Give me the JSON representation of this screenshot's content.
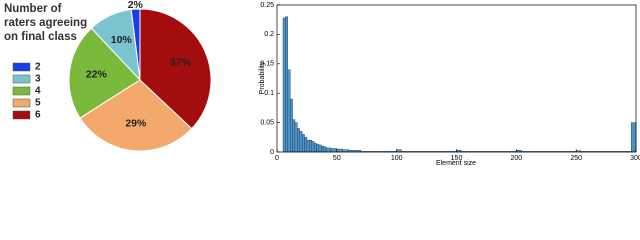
{
  "chart_data": [
    {
      "type": "pie",
      "title": "Number of raters agreeing on final class",
      "categories": [
        "2",
        "3",
        "4",
        "5",
        "6"
      ],
      "values": [
        2,
        10,
        22,
        29,
        37
      ],
      "value_labels": [
        "2%",
        "10%",
        "22%",
        "29%",
        "37%"
      ],
      "colors": [
        "#1d3fe0",
        "#7ac4cf",
        "#79b93c",
        "#f2a96b",
        "#a30d0d"
      ]
    },
    {
      "type": "histogram",
      "x_label": "Element size",
      "y_label": "Probability",
      "bins": [
        5,
        7,
        9,
        11,
        13,
        15,
        17,
        19,
        21,
        23,
        25,
        27,
        29,
        31,
        33,
        35,
        37,
        39,
        41,
        45,
        50,
        55,
        60,
        70,
        100,
        104,
        150,
        154,
        200,
        204,
        250,
        254,
        296,
        300
      ],
      "values": [
        0.228,
        0.23,
        0.14,
        0.09,
        0.055,
        0.05,
        0.04,
        0.035,
        0.03,
        0.025,
        0.02,
        0.02,
        0.018,
        0.015,
        0.013,
        0.012,
        0.01,
        0.009,
        0.007,
        0.006,
        0.005,
        0.004,
        0.003,
        0.001,
        0.004,
        0.001,
        0.003,
        0.001,
        0.003,
        0.001,
        0.002,
        0.001,
        0.05
      ],
      "color": "#4d94c9",
      "xlim": [
        0,
        300
      ],
      "ylim": [
        0,
        0.25
      ],
      "xticks": [
        0,
        50,
        100,
        150,
        200,
        250,
        300
      ],
      "yticks": [
        0,
        0.05,
        0.1,
        0.15,
        0.2,
        0.25
      ]
    }
  ]
}
